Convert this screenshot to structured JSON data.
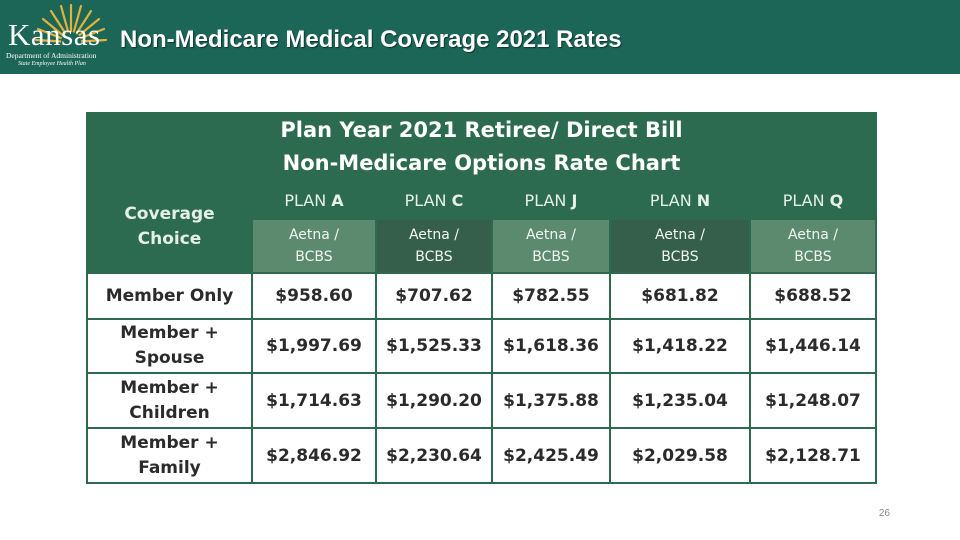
{
  "header": {
    "title": "Non-Medicare Medical Coverage 2021 Rates",
    "logo": {
      "wordmark": "Kansas",
      "department": "Department of Administration",
      "program": "State Employee Health Plan",
      "color": "#e2b23a"
    },
    "background": "#1b6657"
  },
  "chart": {
    "title_line1": "Plan Year 2021 Retiree/ Direct Bill",
    "title_line2": "Non-Medicare Options Rate Chart",
    "coverage_line1": "Coverage",
    "coverage_line2": "Choice",
    "plan_prefix": "PLAN",
    "plans": [
      {
        "letter": "A",
        "carrier_line1": "Aetna /",
        "carrier_line2": "BCBS"
      },
      {
        "letter": "C",
        "carrier_line1": "Aetna  /",
        "carrier_line2": "BCBS"
      },
      {
        "letter": "J",
        "carrier_line1": "Aetna /",
        "carrier_line2": "BCBS"
      },
      {
        "letter": "N",
        "carrier_line1": "Aetna /",
        "carrier_line2": "BCBS"
      },
      {
        "letter": "Q",
        "carrier_line1": "Aetna /",
        "carrier_line2": "BCBS"
      }
    ],
    "rows": [
      {
        "label_line1": "Member Only",
        "label_line2": "",
        "rates": [
          "$958.60",
          "$707.62",
          "$782.55",
          "$681.82",
          "$688.52"
        ]
      },
      {
        "label_line1": "Member +",
        "label_line2": "Spouse",
        "rates": [
          "$1,997.69",
          "$1,525.33",
          "$1,618.36",
          "$1,418.22",
          "$1,446.14"
        ]
      },
      {
        "label_line1": "Member +",
        "label_line2": "Children",
        "rates": [
          "$1,714.63",
          "$1,290.20",
          "$1,375.88",
          "$1,235.04",
          "$1,248.07"
        ]
      },
      {
        "label_line1": "Member +",
        "label_line2": "Family",
        "rates": [
          "$2,846.92",
          "$2,230.64",
          "$2,425.49",
          "$2,029.58",
          "$2,128.71"
        ]
      }
    ],
    "colors": {
      "dark_green": "#2c6b4f",
      "mid_green": "#5c8a6f"
    }
  },
  "footer": {
    "page_number": "26"
  }
}
